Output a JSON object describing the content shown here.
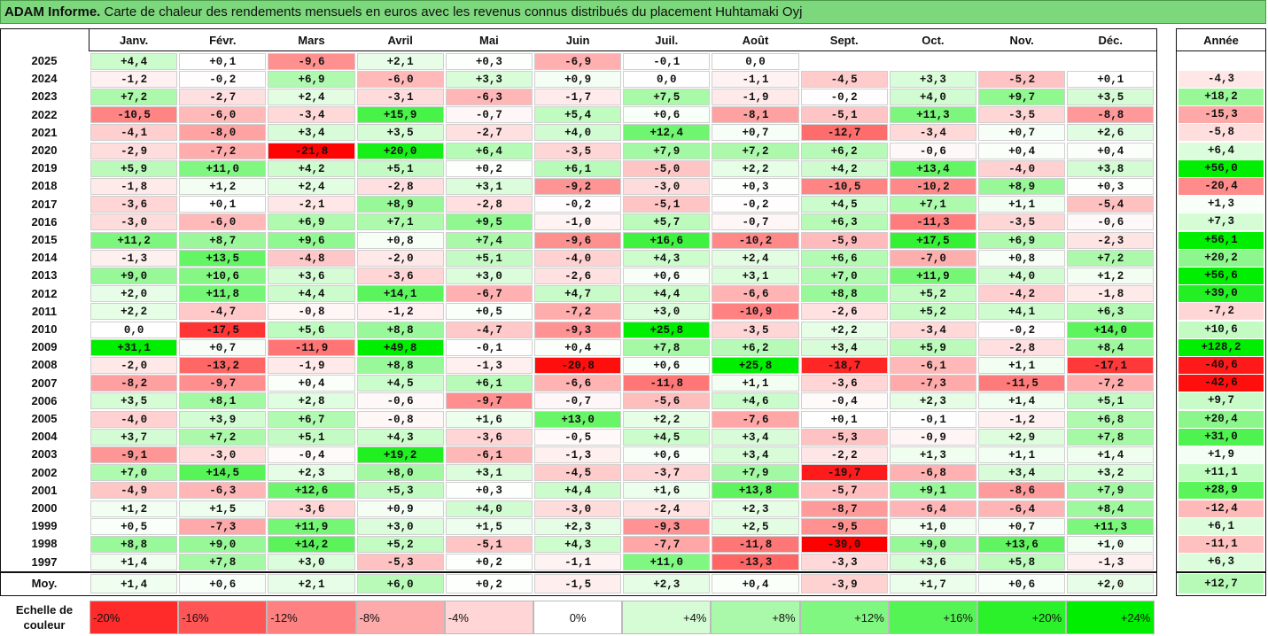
{
  "title_bold": "ADAM Informe.",
  "title_rest": " Carte de chaleur des rendements mensuels en euros avec les revenus connus distribués du placement Huhtamaki Oyj",
  "year_header": "Année",
  "avg_label": "Moy.",
  "legend_label_line1": "Echelle de",
  "legend_label_line2": "couleur",
  "colors": {
    "negative_max": "#ff0000",
    "neutral": "#ffffff",
    "positive_max": "#00ee00",
    "title_bg": "#7dd87d"
  },
  "chart_data": {
    "type": "heatmap",
    "columns": [
      "Janv.",
      "Févr.",
      "Mars",
      "Avril",
      "Mai",
      "Juin",
      "Juil.",
      "Août",
      "Sept.",
      "Oct.",
      "Nov.",
      "Déc."
    ],
    "rows": [
      {
        "year": "2025",
        "m": [
          "+4,4",
          "+0,1",
          "-9,6",
          "+2,1",
          "+0,3",
          "-6,9",
          "-0,1",
          "0,0",
          "",
          "",
          "",
          ""
        ],
        "a": ""
      },
      {
        "year": "2024",
        "m": [
          "-1,2",
          "-0,2",
          "+6,9",
          "-6,0",
          "+3,3",
          "+0,9",
          "0,0",
          "-1,1",
          "-4,5",
          "+3,3",
          "-5,2",
          "+0,1"
        ],
        "a": "-4,3"
      },
      {
        "year": "2023",
        "m": [
          "+7,2",
          "-2,7",
          "+2,4",
          "-3,1",
          "-6,3",
          "-1,7",
          "+7,5",
          "-1,9",
          "-0,2",
          "+4,0",
          "+9,7",
          "+3,5"
        ],
        "a": "+18,2"
      },
      {
        "year": "2022",
        "m": [
          "-10,5",
          "-6,0",
          "-3,4",
          "+15,9",
          "-0,7",
          "+5,4",
          "+0,6",
          "-8,1",
          "-5,1",
          "+11,3",
          "-3,5",
          "-8,8"
        ],
        "a": "-15,3"
      },
      {
        "year": "2021",
        "m": [
          "-4,1",
          "-8,0",
          "+3,4",
          "+3,5",
          "-2,7",
          "+4,0",
          "+12,4",
          "+0,7",
          "-12,7",
          "-3,4",
          "+0,7",
          "+2,6"
        ],
        "a": "-5,8"
      },
      {
        "year": "2020",
        "m": [
          "-2,9",
          "-7,2",
          "-21,8",
          "+20,0",
          "+6,4",
          "-3,5",
          "+7,9",
          "+7,2",
          "+6,2",
          "-0,6",
          "+0,4",
          "+0,4"
        ],
        "a": "+6,4"
      },
      {
        "year": "2019",
        "m": [
          "+5,9",
          "+11,0",
          "+4,2",
          "+5,1",
          "+0,2",
          "+6,1",
          "-5,0",
          "+2,2",
          "+4,2",
          "+13,4",
          "-4,0",
          "+3,8"
        ],
        "a": "+56,0"
      },
      {
        "year": "2018",
        "m": [
          "-1,8",
          "+1,2",
          "+2,4",
          "-2,8",
          "+3,1",
          "-9,2",
          "-3,0",
          "+0,3",
          "-10,5",
          "-10,2",
          "+8,9",
          "+0,3"
        ],
        "a": "-20,4"
      },
      {
        "year": "2017",
        "m": [
          "-3,6",
          "+0,1",
          "-2,1",
          "+8,9",
          "-2,8",
          "-0,2",
          "-5,1",
          "-0,2",
          "+4,5",
          "+7,1",
          "+1,1",
          "-5,4"
        ],
        "a": "+1,3"
      },
      {
        "year": "2016",
        "m": [
          "-3,0",
          "-6,0",
          "+6,9",
          "+7,1",
          "+9,5",
          "-1,0",
          "+5,7",
          "-0,7",
          "+6,3",
          "-11,3",
          "-3,5",
          "-0,6"
        ],
        "a": "+7,3"
      },
      {
        "year": "2015",
        "m": [
          "+11,2",
          "+8,7",
          "+9,6",
          "+0,8",
          "+7,4",
          "-9,6",
          "+16,6",
          "-10,2",
          "-5,9",
          "+17,5",
          "+6,9",
          "-2,3"
        ],
        "a": "+56,1"
      },
      {
        "year": "2014",
        "m": [
          "-1,3",
          "+13,5",
          "-4,8",
          "-2,0",
          "+5,1",
          "-4,0",
          "+4,3",
          "+2,4",
          "+6,6",
          "-7,0",
          "+0,8",
          "+7,2"
        ],
        "a": "+20,2"
      },
      {
        "year": "2013",
        "m": [
          "+9,0",
          "+10,6",
          "+3,6",
          "-3,6",
          "+3,0",
          "-2,6",
          "+0,6",
          "+3,1",
          "+7,0",
          "+11,9",
          "+4,0",
          "+1,2"
        ],
        "a": "+56,6"
      },
      {
        "year": "2012",
        "m": [
          "+2,0",
          "+11,8",
          "+4,4",
          "+14,1",
          "-6,7",
          "+4,7",
          "+4,4",
          "-6,6",
          "+8,8",
          "+5,2",
          "-4,2",
          "-1,8"
        ],
        "a": "+39,0"
      },
      {
        "year": "2011",
        "m": [
          "+2,2",
          "-4,7",
          "-0,8",
          "-1,2",
          "+0,5",
          "-7,2",
          "+3,0",
          "-10,9",
          "-2,6",
          "+5,2",
          "+4,1",
          "+6,3"
        ],
        "a": "-7,2"
      },
      {
        "year": "2010",
        "m": [
          "0,0",
          "-17,5",
          "+5,6",
          "+8,8",
          "-4,7",
          "-9,3",
          "+25,8",
          "-3,5",
          "+2,2",
          "-3,4",
          "-0,2",
          "+14,0"
        ],
        "a": "+10,6"
      },
      {
        "year": "2009",
        "m": [
          "+31,1",
          "+0,7",
          "-11,9",
          "+49,8",
          "-0,1",
          "+0,4",
          "+7,8",
          "+6,2",
          "+3,4",
          "+5,9",
          "-2,8",
          "+8,4"
        ],
        "a": "+128,2"
      },
      {
        "year": "2008",
        "m": [
          "-2,0",
          "-13,2",
          "-1,9",
          "+8,8",
          "-1,3",
          "-20,8",
          "+0,6",
          "+25,8",
          "-18,7",
          "-6,1",
          "+1,1",
          "-17,1"
        ],
        "a": "-40,6"
      },
      {
        "year": "2007",
        "m": [
          "-8,2",
          "-9,7",
          "+0,4",
          "+4,5",
          "+6,1",
          "-6,6",
          "-11,8",
          "+1,1",
          "-3,6",
          "-7,3",
          "-11,5",
          "-7,2"
        ],
        "a": "-42,6"
      },
      {
        "year": "2006",
        "m": [
          "+3,5",
          "+8,1",
          "+2,8",
          "-0,6",
          "-9,7",
          "-0,7",
          "-5,6",
          "+4,6",
          "-0,4",
          "+2,3",
          "+1,4",
          "+5,1"
        ],
        "a": "+9,7"
      },
      {
        "year": "2005",
        "m": [
          "-4,0",
          "+3,9",
          "+6,7",
          "-0,8",
          "+1,6",
          "+13,0",
          "+2,2",
          "-7,6",
          "+0,1",
          "-0,1",
          "-1,2",
          "+6,8"
        ],
        "a": "+20,4"
      },
      {
        "year": "2004",
        "m": [
          "+3,7",
          "+7,2",
          "+5,1",
          "+4,3",
          "-3,6",
          "-0,5",
          "+4,5",
          "+3,4",
          "-5,3",
          "-0,9",
          "+2,9",
          "+7,8"
        ],
        "a": "+31,0"
      },
      {
        "year": "2003",
        "m": [
          "-9,1",
          "-3,0",
          "-0,4",
          "+19,2",
          "-6,1",
          "-1,3",
          "+0,6",
          "+3,4",
          "-2,2",
          "+1,3",
          "+1,1",
          "+1,4"
        ],
        "a": "+1,9"
      },
      {
        "year": "2002",
        "m": [
          "+7,0",
          "+14,5",
          "+2,3",
          "+8,0",
          "+3,1",
          "-4,5",
          "-3,7",
          "+7,9",
          "-19,7",
          "-6,8",
          "+3,4",
          "+3,2"
        ],
        "a": "+11,1"
      },
      {
        "year": "2001",
        "m": [
          "-4,9",
          "-6,3",
          "+12,6",
          "+5,3",
          "+0,3",
          "+4,4",
          "+1,6",
          "+13,8",
          "-5,7",
          "+9,1",
          "-8,6",
          "+7,9"
        ],
        "a": "+28,9"
      },
      {
        "year": "2000",
        "m": [
          "+1,2",
          "+1,5",
          "-3,6",
          "+0,9",
          "+4,0",
          "-3,0",
          "-2,4",
          "+2,3",
          "-8,7",
          "-6,4",
          "-6,4",
          "+8,4"
        ],
        "a": "-12,4"
      },
      {
        "year": "1999",
        "m": [
          "+0,5",
          "-7,3",
          "+11,9",
          "+3,0",
          "+1,5",
          "+2,3",
          "-9,3",
          "+2,5",
          "-9,5",
          "+1,0",
          "+0,7",
          "+11,3"
        ],
        "a": "+6,1"
      },
      {
        "year": "1998",
        "m": [
          "+8,8",
          "+9,0",
          "+14,2",
          "+5,2",
          "-5,1",
          "+4,3",
          "-7,7",
          "-11,8",
          "-39,0",
          "+9,0",
          "+13,6",
          "+1,0"
        ],
        "a": "-11,1"
      },
      {
        "year": "1997",
        "m": [
          "+1,4",
          "+7,8",
          "+3,0",
          "-5,3",
          "+0,2",
          "-1,1",
          "+11,0",
          "-13,3",
          "-3,3",
          "+3,6",
          "+5,8",
          "-1,3"
        ],
        "a": "+6,3"
      }
    ],
    "average": {
      "m": [
        "+1,4",
        "+0,6",
        "+2,1",
        "+6,0",
        "+0,2",
        "-1,5",
        "+2,3",
        "+0,4",
        "-3,9",
        "+1,7",
        "+0,6",
        "+2,0"
      ],
      "a": "+12,7"
    },
    "scale": [
      {
        "v": -20,
        "label": "-20%"
      },
      {
        "v": -16,
        "label": "-16%"
      },
      {
        "v": -12,
        "label": "-12%"
      },
      {
        "v": -8,
        "label": "-8%"
      },
      {
        "v": -4,
        "label": "-4%"
      },
      {
        "v": 0,
        "label": "0%"
      },
      {
        "v": 4,
        "label": "+4%"
      },
      {
        "v": 8,
        "label": "+8%"
      },
      {
        "v": 12,
        "label": "+12%"
      },
      {
        "v": 16,
        "label": "+16%"
      },
      {
        "v": 20,
        "label": "+20%"
      },
      {
        "v": 24,
        "label": "+24%"
      }
    ]
  }
}
